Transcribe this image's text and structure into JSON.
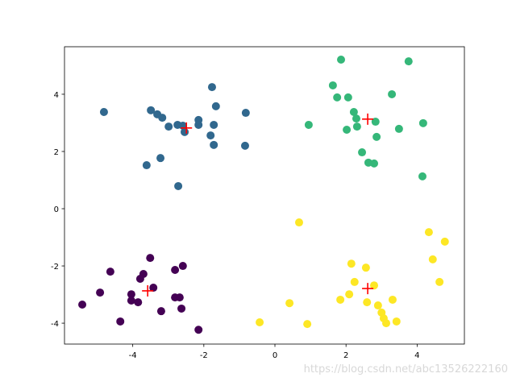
{
  "chart_data": {
    "type": "scatter",
    "xlim": [
      -5.92,
      5.33
    ],
    "ylim": [
      -4.73,
      5.66
    ],
    "xticks": [
      -4,
      -2,
      0,
      2,
      4
    ],
    "yticks": [
      -4,
      -2,
      0,
      2,
      4
    ],
    "grid": false,
    "series": [
      {
        "color": "#31688e",
        "marker": "dot",
        "x": [
          -4.81,
          -3.49,
          -3.31,
          -3.17,
          -2.99,
          -2.74,
          -2.59,
          -2.54,
          -2.15,
          -2.15,
          -1.77,
          -1.66,
          -1.72,
          -1.81,
          -1.72,
          -0.82,
          -0.84,
          -3.22,
          -3.61,
          -2.72
        ],
        "y": [
          3.38,
          3.44,
          3.3,
          3.18,
          2.87,
          2.93,
          2.9,
          2.68,
          3.1,
          2.93,
          4.25,
          3.58,
          2.93,
          2.56,
          2.23,
          3.35,
          2.2,
          1.77,
          1.52,
          0.79
        ]
      },
      {
        "color": "#35b779",
        "marker": "dot",
        "x": [
          1.86,
          3.76,
          1.63,
          1.75,
          2.06,
          3.29,
          2.22,
          2.29,
          2.31,
          0.95,
          2.02,
          2.83,
          3.49,
          4.17,
          2.86,
          2.45,
          2.63,
          2.79,
          4.15
        ],
        "y": [
          5.21,
          5.15,
          4.31,
          3.89,
          3.89,
          4.0,
          3.38,
          3.15,
          2.87,
          2.93,
          2.76,
          3.04,
          2.79,
          2.99,
          2.51,
          1.97,
          1.61,
          1.58,
          1.13
        ]
      },
      {
        "color": "#fde725",
        "marker": "dot",
        "x": [
          0.68,
          4.33,
          4.78,
          4.44,
          4.63,
          2.15,
          2.56,
          2.24,
          2.79,
          2.09,
          1.84,
          2.59,
          3.31,
          2.9,
          3.0,
          3.06,
          3.13,
          3.42,
          0.41,
          -0.43,
          0.91
        ],
        "y": [
          -0.48,
          -0.82,
          -1.15,
          -1.77,
          -2.56,
          -1.92,
          -2.06,
          -2.56,
          -2.68,
          -2.99,
          -3.18,
          -3.27,
          -3.18,
          -3.38,
          -3.63,
          -3.83,
          -4.0,
          -3.94,
          -3.3,
          -3.97,
          -4.03
        ]
      },
      {
        "color": "#440154",
        "marker": "dot",
        "x": [
          -3.51,
          -3.7,
          -3.79,
          -4.63,
          -2.59,
          -2.81,
          -3.42,
          -4.04,
          -4.92,
          -4.04,
          -3.85,
          -2.81,
          -2.68,
          -3.2,
          -2.63,
          -5.42,
          -4.35,
          -2.15
        ],
        "y": [
          -1.72,
          -2.28,
          -2.45,
          -2.2,
          -2.0,
          -2.14,
          -2.76,
          -2.99,
          -2.93,
          -3.21,
          -3.27,
          -3.1,
          -3.1,
          -3.58,
          -3.49,
          -3.35,
          -3.94,
          -4.23
        ]
      },
      {
        "color": "#ff0000",
        "marker": "plus",
        "x": [
          -2.49,
          2.61,
          2.61,
          -3.58
        ],
        "y": [
          2.82,
          3.13,
          -2.79,
          -2.87
        ]
      }
    ],
    "watermark": "https://blog.csdn.net/abc13526222160"
  }
}
